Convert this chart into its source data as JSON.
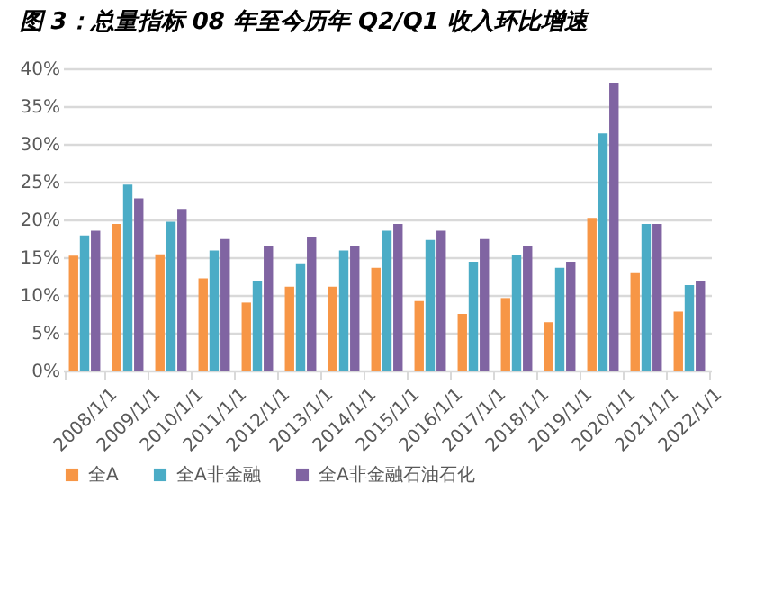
{
  "chart_data": {
    "type": "bar",
    "title": "图 3：总量指标 08 年至今历年 Q2/Q1 收入环比增速",
    "categories": [
      "2008/1/1",
      "2009/1/1",
      "2010/1/1",
      "2011/1/1",
      "2012/1/1",
      "2013/1/1",
      "2014/1/1",
      "2015/1/1",
      "2016/1/1",
      "2017/1/1",
      "2018/1/1",
      "2019/1/1",
      "2020/1/1",
      "2021/1/1",
      "2022/1/1"
    ],
    "series": [
      {
        "name": "全A",
        "color": "#f79646",
        "values": [
          15.2,
          19.4,
          15.4,
          12.2,
          9.0,
          11.1,
          11.1,
          13.6,
          9.2,
          7.5,
          9.6,
          6.4,
          20.2,
          13.0,
          7.8
        ]
      },
      {
        "name": "全A非金融",
        "color": "#4bacc6",
        "values": [
          17.9,
          24.6,
          19.7,
          15.9,
          11.9,
          14.2,
          15.9,
          18.5,
          17.3,
          14.4,
          15.3,
          13.6,
          31.4,
          19.4,
          11.3
        ]
      },
      {
        "name": "全A非金融石油石化",
        "color": "#8064a2",
        "values": [
          18.5,
          22.8,
          21.4,
          17.4,
          16.5,
          17.7,
          16.5,
          19.4,
          18.5,
          17.4,
          16.5,
          14.4,
          38.1,
          19.4,
          11.9
        ]
      }
    ],
    "ylim": [
      0,
      40
    ],
    "yticks": [
      {
        "value": 0,
        "label": "0%"
      },
      {
        "value": 5,
        "label": "5%"
      },
      {
        "value": 10,
        "label": "10%"
      },
      {
        "value": 15,
        "label": "15%"
      },
      {
        "value": 20,
        "label": "20%"
      },
      {
        "value": 25,
        "label": "25%"
      },
      {
        "value": 30,
        "label": "30%"
      },
      {
        "value": 35,
        "label": "35%"
      },
      {
        "value": 40,
        "label": "40%"
      }
    ],
    "grid": "y",
    "legend": "bottom"
  }
}
